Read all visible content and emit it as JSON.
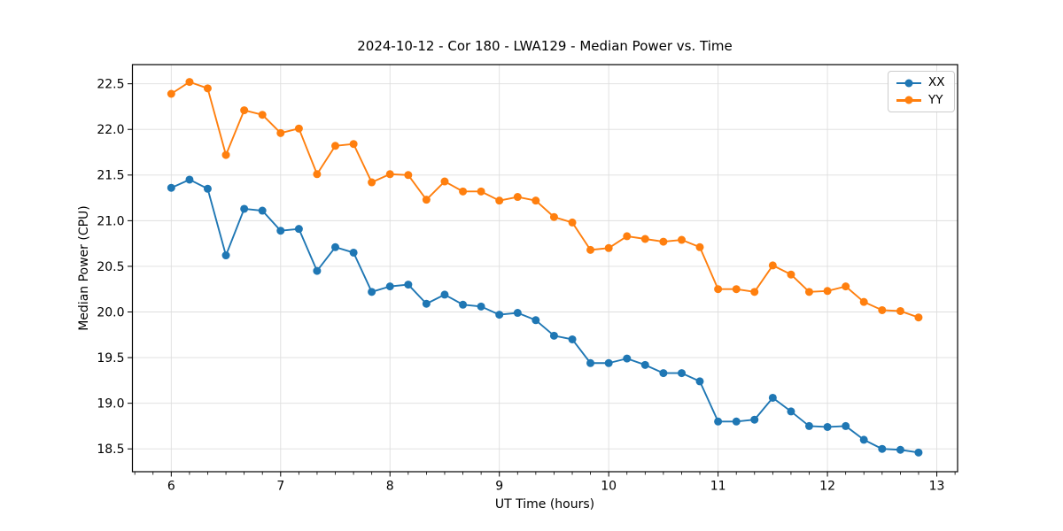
{
  "chart_data": {
    "type": "line",
    "title": "2024-10-12 - Cor 180 - LWA129 - Median Power vs. Time",
    "xlabel": "UT Time (hours)",
    "ylabel": "Median Power (CPU)",
    "xlim": [
      5.645,
      13.19
    ],
    "ylim": [
      18.25,
      22.71
    ],
    "xticks": [
      6,
      7,
      8,
      9,
      10,
      11,
      12,
      13
    ],
    "xtick_labels": [
      "6",
      "7",
      "8",
      "9",
      "10",
      "11",
      "12",
      "13"
    ],
    "yticks": [
      18.5,
      19.0,
      19.5,
      20.0,
      20.5,
      21.0,
      21.5,
      22.0,
      22.5
    ],
    "ytick_labels": [
      "18.5",
      "19.0",
      "19.5",
      "20.0",
      "20.5",
      "21.0",
      "21.5",
      "22.0",
      "22.5"
    ],
    "minor_xtick_interval": 0.16667,
    "grid": true,
    "legend_position": "upper right",
    "x": [
      6.0,
      6.167,
      6.333,
      6.5,
      6.667,
      6.833,
      7.0,
      7.167,
      7.333,
      7.5,
      7.667,
      7.833,
      8.0,
      8.167,
      8.333,
      8.5,
      8.667,
      8.833,
      9.0,
      9.167,
      9.333,
      9.5,
      9.667,
      9.833,
      10.0,
      10.167,
      10.333,
      10.5,
      10.667,
      10.833,
      11.0,
      11.167,
      11.333,
      11.5,
      11.667,
      11.833,
      12.0,
      12.167,
      12.333,
      12.5,
      12.667,
      12.833
    ],
    "series": [
      {
        "name": "XX",
        "color": "#1f77b4",
        "values": [
          21.36,
          21.45,
          21.35,
          20.62,
          21.13,
          21.11,
          20.89,
          20.91,
          20.45,
          20.71,
          20.65,
          20.22,
          20.28,
          20.3,
          20.09,
          20.19,
          20.08,
          20.06,
          19.97,
          19.99,
          19.91,
          19.74,
          19.7,
          19.44,
          19.44,
          19.49,
          19.42,
          19.33,
          19.33,
          19.24,
          18.8,
          18.8,
          18.82,
          19.06,
          18.91,
          18.75,
          18.74,
          18.75,
          18.6,
          18.5,
          18.49,
          18.46
        ]
      },
      {
        "name": "YY",
        "color": "#ff7f0e",
        "values": [
          22.39,
          22.52,
          22.45,
          21.72,
          22.21,
          22.16,
          21.96,
          22.01,
          21.51,
          21.82,
          21.84,
          21.42,
          21.51,
          21.5,
          21.23,
          21.43,
          21.32,
          21.32,
          21.22,
          21.26,
          21.22,
          21.04,
          20.98,
          20.68,
          20.7,
          20.83,
          20.8,
          20.77,
          20.79,
          20.71,
          20.25,
          20.25,
          20.22,
          20.51,
          20.41,
          20.22,
          20.23,
          20.28,
          20.11,
          20.02,
          20.01,
          19.94
        ]
      }
    ],
    "colors": {
      "grid": "#dedede",
      "spine": "#000000",
      "tick": "#000000",
      "text": "#000000",
      "background": "#ffffff"
    }
  }
}
